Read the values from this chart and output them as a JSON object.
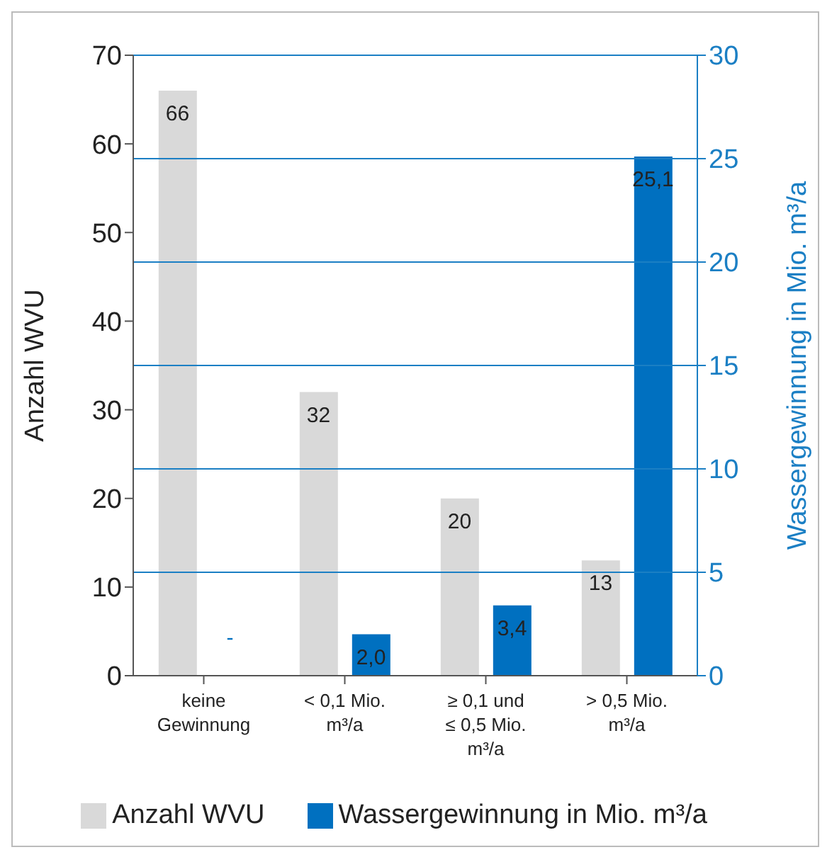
{
  "chart_data": {
    "type": "bar",
    "ylabel": "Anzahl WVU",
    "y2label": "Wassergewinnung in Mio. m³/a",
    "categories": [
      "keine Gewinnung",
      "< 0,1 Mio. m³/a",
      "≥ 0,1 und ≤ 0,5 Mio. m³/a",
      "> 0,5 Mio. m³/a"
    ],
    "series": [
      {
        "name": "Anzahl WVU",
        "color": "#d9d9d9",
        "values": [
          66,
          32,
          20,
          13
        ],
        "value_labels": [
          "66",
          "32",
          "20",
          "13"
        ]
      },
      {
        "name": "Wassergewinnung in Mio. m³/a",
        "color": "#0070c0",
        "axis": "y2",
        "values": [
          null,
          2.0,
          3.4,
          25.1
        ],
        "value_labels": [
          "-",
          "2,0",
          "3,4",
          "25,1"
        ]
      }
    ],
    "ylim": [
      0,
      70
    ],
    "yticks": [
      0,
      10,
      20,
      30,
      40,
      50,
      60,
      70
    ],
    "y2lim": [
      0,
      30
    ],
    "y2ticks": [
      0,
      5,
      10,
      15,
      20,
      25,
      30
    ],
    "grid": "y2",
    "legend": "bottom"
  }
}
